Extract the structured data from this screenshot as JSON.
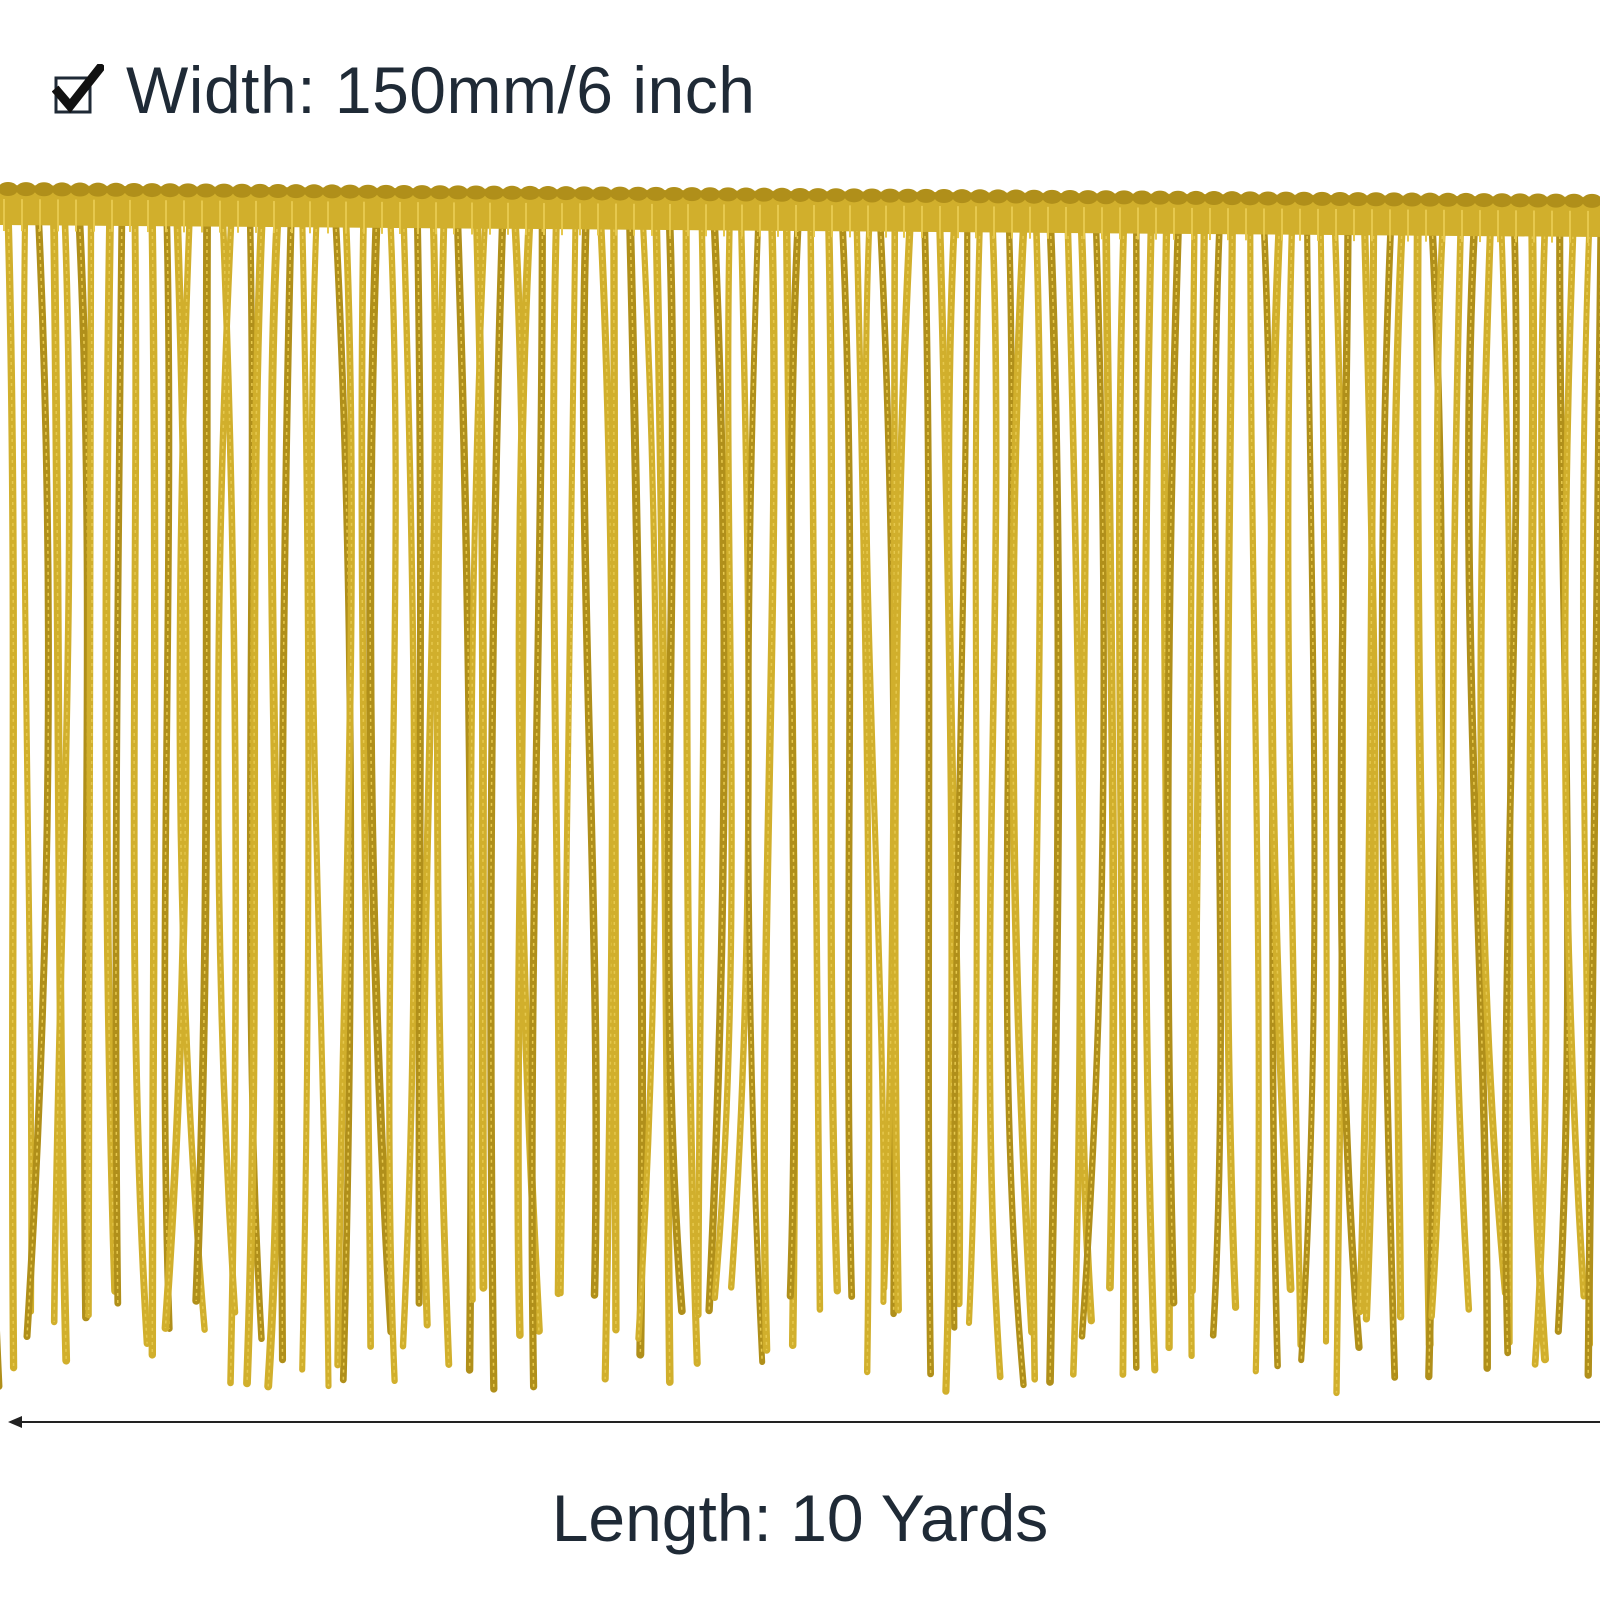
{
  "width_spec": {
    "icon": "checkbox-check-icon",
    "text": "Width: 150mm/6 inch"
  },
  "length_spec": {
    "text": "Length: 10 Yards"
  },
  "colors": {
    "gold": "#d1af2c",
    "gold_dark": "#b08f1a",
    "gold_light": "#e6c84d",
    "text": "#1f2a36",
    "background": "#ffffff"
  }
}
